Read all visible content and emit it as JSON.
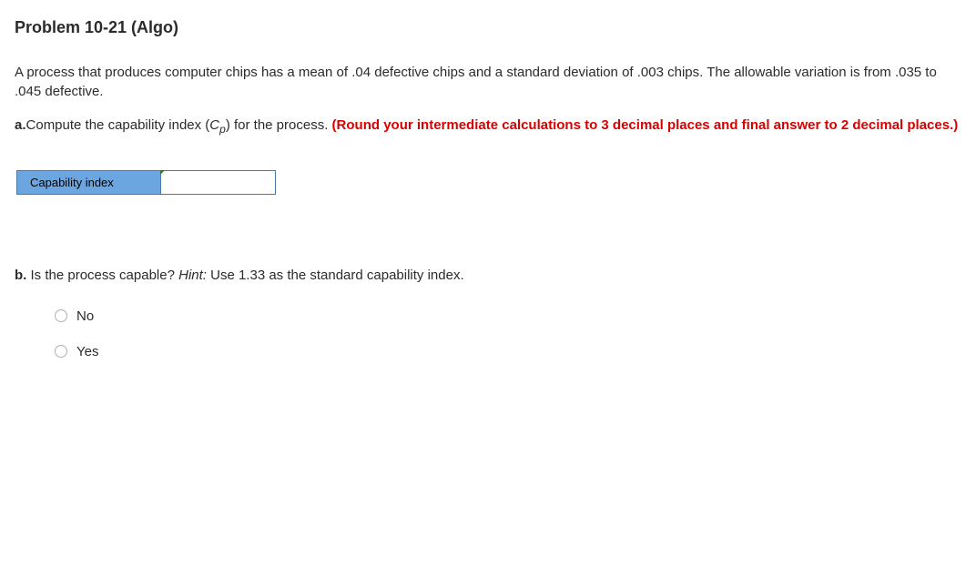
{
  "title": "Problem 10-21 (Algo)",
  "intro": "A process that produces computer chips has a mean of .04 defective chips and a standard deviation of .003 chips. The allowable variation is from .035 to .045 defective.",
  "partA": {
    "bold_prefix": "a.",
    "text_before_symbol": "Compute the capability index (",
    "symbol_letter": "C",
    "symbol_sub": "p",
    "text_after_symbol": ") for the process. ",
    "red_instruction": "(Round your intermediate calculations to 3 decimal places and final answer to 2 decimal places.)"
  },
  "table": {
    "label": "Capability index",
    "label_bg": "#6ca6e0",
    "border_color": "#4a79a8",
    "input_value": "",
    "marker_color": "#2a7a2a"
  },
  "partB": {
    "bold_prefix": "b.",
    "text_before_hint": " Is the process capable? ",
    "hint_label": "Hint:",
    "hint_text": " Use 1.33 as the standard capability index."
  },
  "options": [
    {
      "label": "No"
    },
    {
      "label": "Yes"
    }
  ],
  "colors": {
    "text": "#2b2b2b",
    "red": "#d90000",
    "bg": "#ffffff"
  }
}
